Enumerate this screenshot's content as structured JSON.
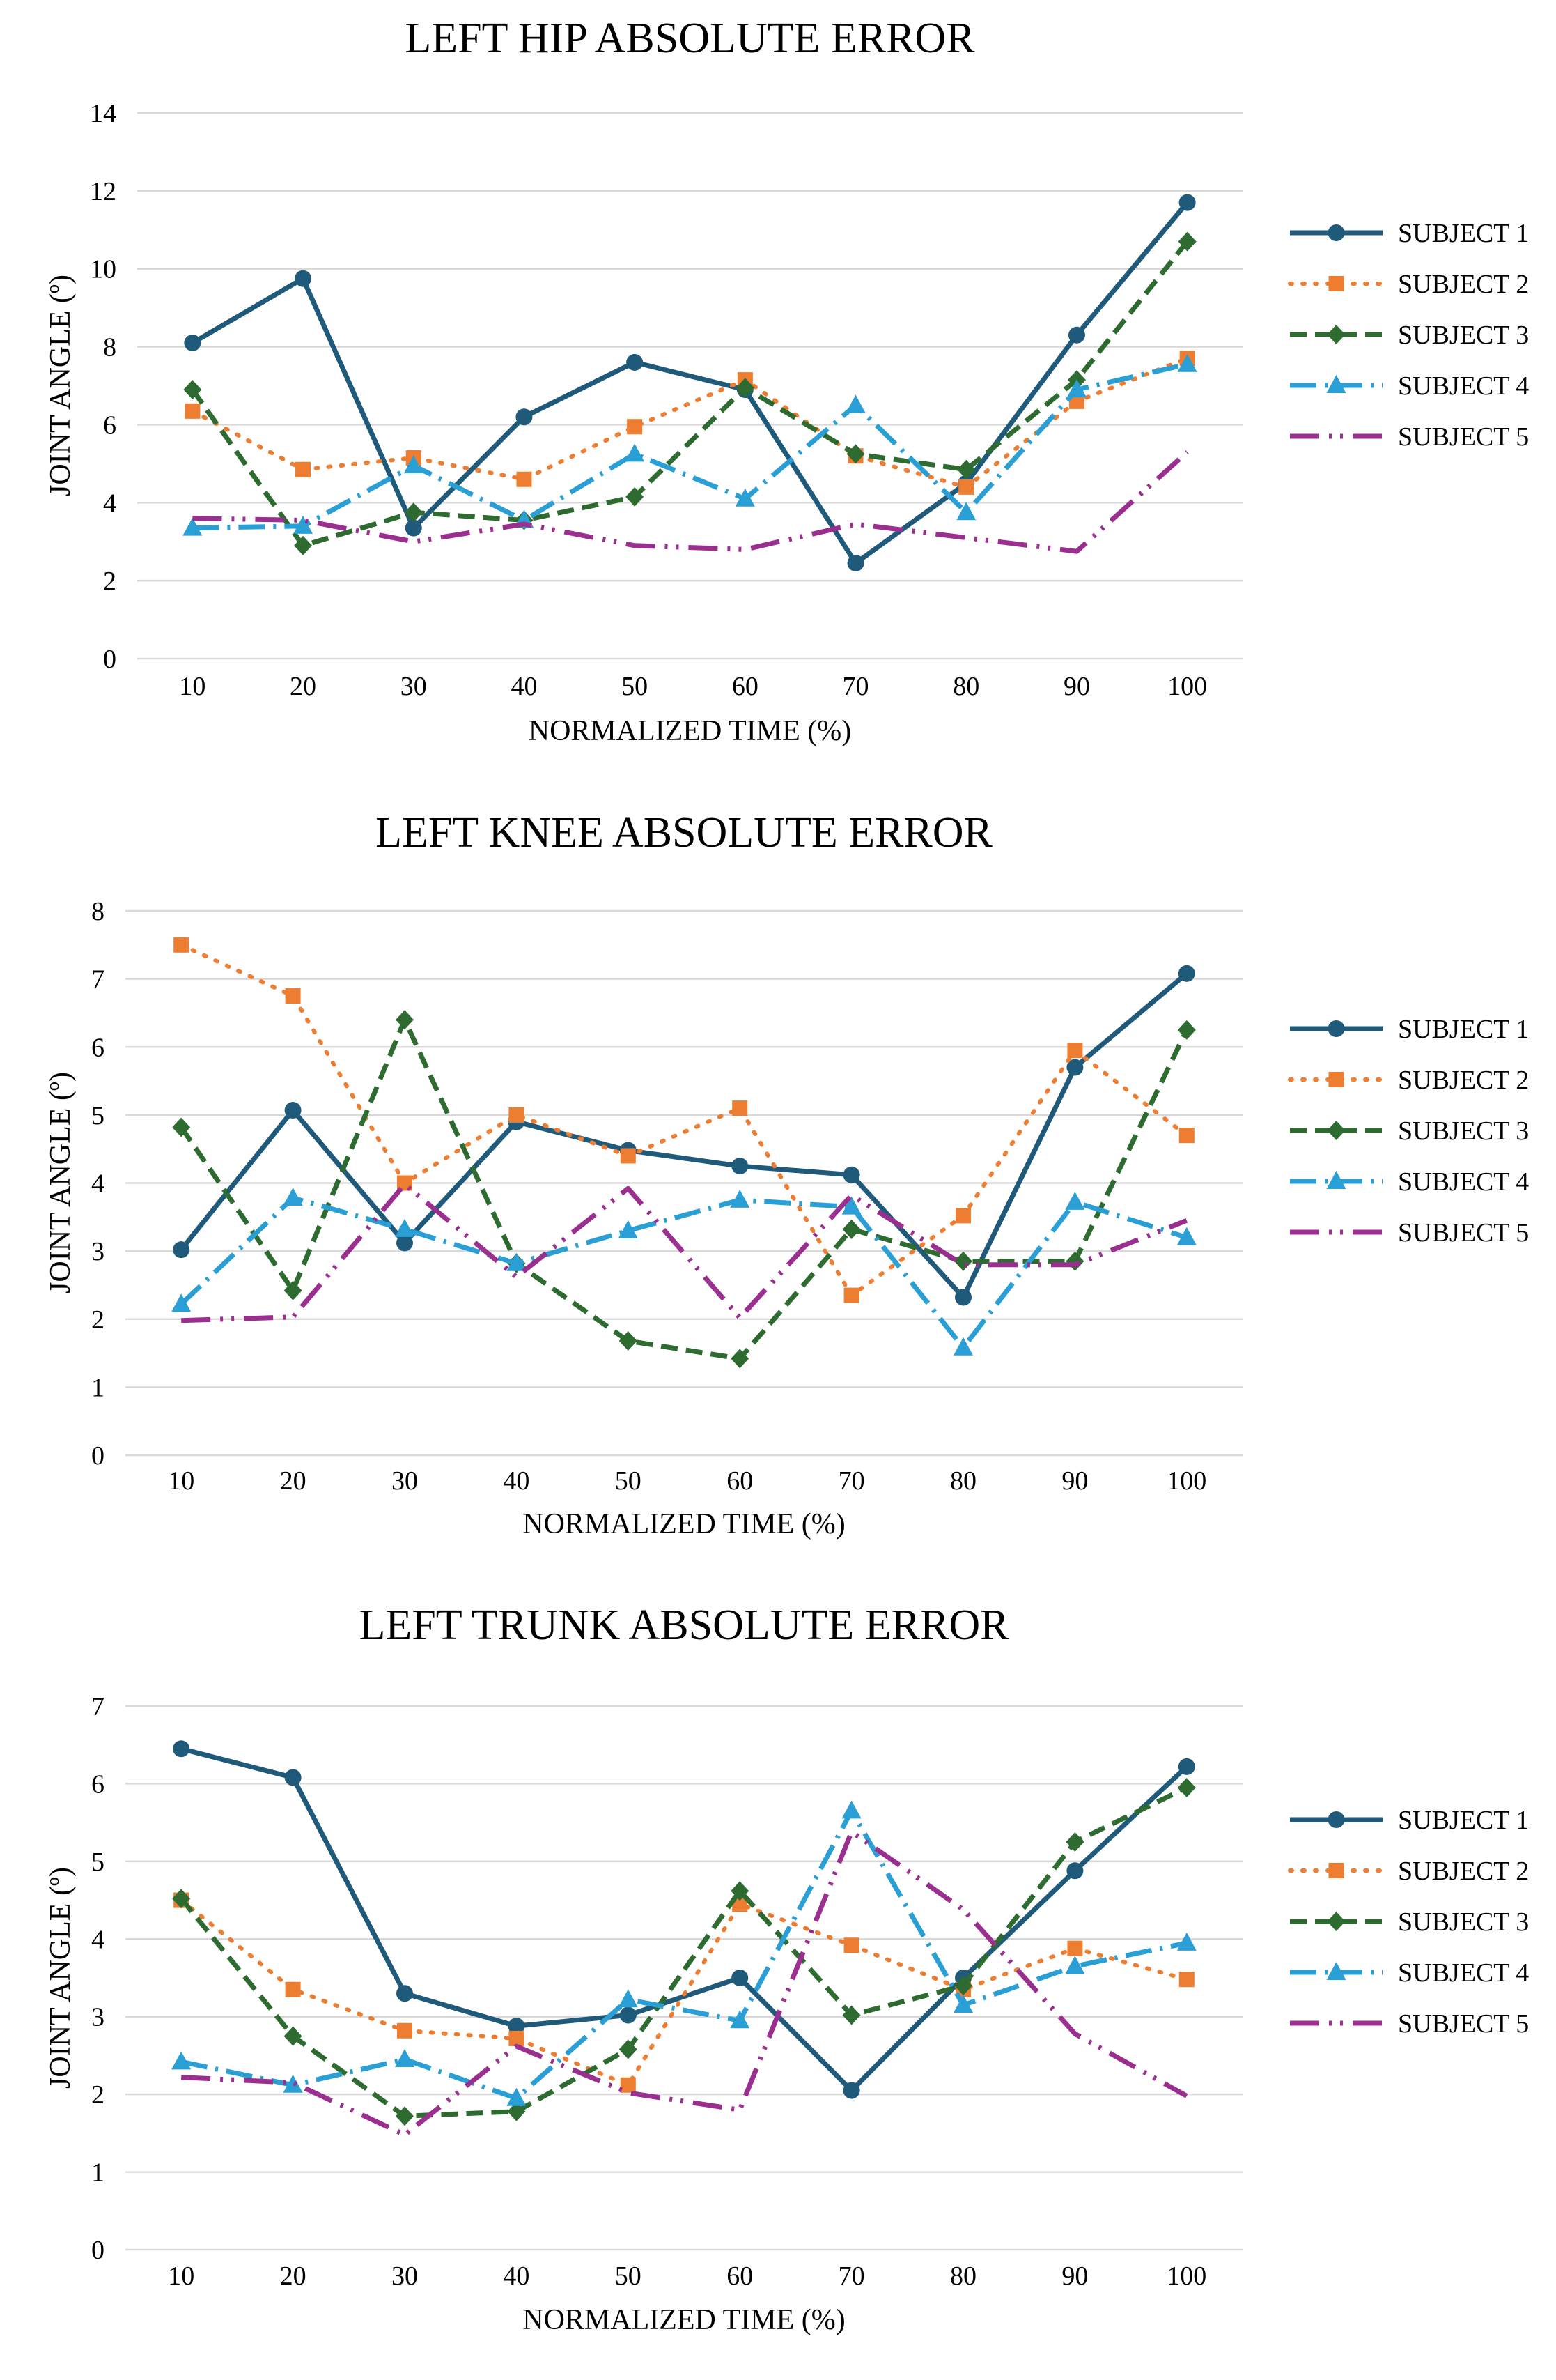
{
  "chart_data": [
    {
      "type": "line",
      "title": "LEFT HIP ABSOLUTE ERROR",
      "xlabel": "NORMALIZED TIME (%)",
      "ylabel": "JOINT ANGLE (º)",
      "categories": [
        "10",
        "20",
        "30",
        "40",
        "50",
        "60",
        "70",
        "80",
        "90",
        "100"
      ],
      "ylim": [
        0,
        14
      ],
      "yticks": [
        "0",
        "2",
        "4",
        "6",
        "8",
        "10",
        "12",
        "14"
      ],
      "grid": true,
      "legend": "right",
      "series": [
        {
          "name": "SUBJECT 1",
          "values": [
            8.1,
            9.75,
            3.35,
            6.2,
            7.6,
            6.9,
            2.45,
            4.5,
            8.3,
            11.7
          ]
        },
        {
          "name": "SUBJECT 2",
          "values": [
            6.35,
            4.85,
            5.15,
            4.6,
            5.95,
            7.15,
            5.2,
            4.4,
            6.6,
            7.7
          ]
        },
        {
          "name": "SUBJECT 3",
          "values": [
            6.9,
            2.9,
            3.75,
            3.55,
            4.15,
            6.95,
            5.25,
            4.85,
            7.15,
            10.7
          ]
        },
        {
          "name": "SUBJECT 4",
          "values": [
            3.35,
            3.4,
            4.95,
            3.55,
            5.25,
            4.1,
            6.5,
            3.75,
            6.9,
            7.55
          ]
        },
        {
          "name": "SUBJECT 5",
          "values": [
            3.6,
            3.55,
            3.0,
            3.45,
            2.9,
            2.8,
            3.45,
            3.1,
            2.75,
            5.3
          ]
        }
      ]
    },
    {
      "type": "line",
      "title": "LEFT KNEE ABSOLUTE ERROR",
      "xlabel": "NORMALIZED TIME (%)",
      "ylabel": "JOINT ANGLE (º)",
      "categories": [
        "10",
        "20",
        "30",
        "40",
        "50",
        "60",
        "70",
        "80",
        "90",
        "100"
      ],
      "ylim": [
        0,
        8
      ],
      "yticks": [
        "0",
        "1",
        "2",
        "3",
        "4",
        "5",
        "6",
        "7",
        "8"
      ],
      "grid": true,
      "legend": "right",
      "series": [
        {
          "name": "SUBJECT 1",
          "values": [
            3.02,
            5.07,
            3.12,
            4.9,
            4.48,
            4.25,
            4.12,
            2.32,
            5.7,
            7.08
          ]
        },
        {
          "name": "SUBJECT 2",
          "values": [
            7.5,
            6.75,
            4.0,
            5.0,
            4.4,
            5.1,
            2.35,
            3.52,
            5.95,
            4.7
          ]
        },
        {
          "name": "SUBJECT 3",
          "values": [
            4.82,
            2.42,
            6.4,
            2.82,
            1.68,
            1.42,
            3.32,
            2.85,
            2.85,
            6.25
          ]
        },
        {
          "name": "SUBJECT 4",
          "values": [
            2.22,
            3.78,
            3.32,
            2.82,
            3.3,
            3.75,
            3.65,
            1.58,
            3.72,
            3.2
          ]
        },
        {
          "name": "SUBJECT 5",
          "values": [
            1.98,
            2.03,
            3.98,
            2.62,
            3.92,
            2.02,
            3.82,
            2.8,
            2.8,
            3.45
          ]
        }
      ]
    },
    {
      "type": "line",
      "title": "LEFT TRUNK ABSOLUTE ERROR",
      "xlabel": "NORMALIZED TIME (%)",
      "ylabel": "JOINT ANGLE (º)",
      "categories": [
        "10",
        "20",
        "30",
        "40",
        "50",
        "60",
        "70",
        "80",
        "90",
        "100"
      ],
      "ylim": [
        0,
        7
      ],
      "yticks": [
        "0",
        "1",
        "2",
        "3",
        "4",
        "5",
        "6",
        "7"
      ],
      "grid": true,
      "legend": "right",
      "series": [
        {
          "name": "SUBJECT 1",
          "values": [
            6.45,
            6.08,
            3.3,
            2.88,
            3.02,
            3.5,
            2.05,
            3.5,
            4.88,
            6.22
          ]
        },
        {
          "name": "SUBJECT 2",
          "values": [
            4.5,
            3.35,
            2.82,
            2.72,
            2.12,
            4.45,
            3.92,
            3.35,
            3.88,
            3.48
          ]
        },
        {
          "name": "SUBJECT 3",
          "values": [
            4.52,
            2.75,
            1.72,
            1.78,
            2.58,
            4.62,
            3.02,
            3.4,
            5.25,
            5.95
          ]
        },
        {
          "name": "SUBJECT 4",
          "values": [
            2.42,
            2.12,
            2.45,
            1.95,
            3.22,
            2.95,
            5.65,
            3.15,
            3.65,
            3.95
          ]
        },
        {
          "name": "SUBJECT 5",
          "values": [
            2.22,
            2.15,
            1.48,
            2.62,
            2.02,
            1.8,
            5.38,
            4.38,
            2.78,
            1.98
          ]
        }
      ]
    }
  ],
  "colors": {
    "subject1": "#1f5a7a",
    "subject2": "#ed7d31",
    "subject3": "#2e6b30",
    "subject4": "#2a9fd6",
    "subject5": "#9b2f8f",
    "grid": "#d9d9d9"
  },
  "markers": [
    "circle",
    "square",
    "diamond",
    "triangle",
    "none"
  ],
  "line_styles": [
    "solid",
    "round-dot",
    "dash",
    "long-dash-dot",
    "long-dash-dot-dot"
  ]
}
